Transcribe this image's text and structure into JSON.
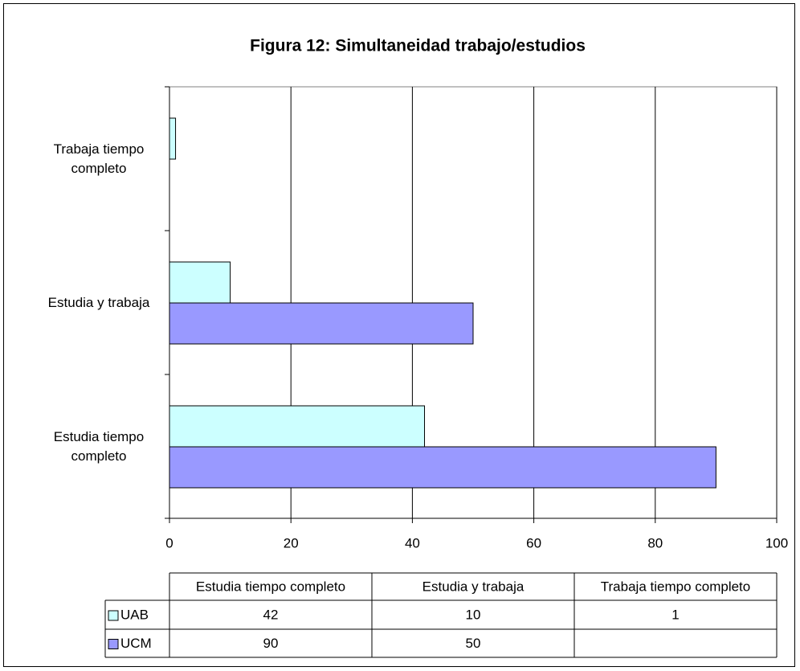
{
  "chart_data": {
    "type": "hbar",
    "title": "Figura 12: Simultaneidad trabajo/estudios",
    "categories": [
      "Estudia tiempo completo",
      "Estudia y trabaja",
      "Trabaja tiempo completo"
    ],
    "series": [
      {
        "name": "UAB",
        "color": "#ccffff",
        "values": [
          42,
          10,
          1
        ]
      },
      {
        "name": "UCM",
        "color": "#9999ff",
        "values": [
          90,
          50,
          null
        ]
      }
    ],
    "xlim": [
      0,
      100
    ],
    "xticks": [
      0,
      20,
      40,
      60,
      80,
      100
    ],
    "grid": true,
    "data_table": true
  }
}
